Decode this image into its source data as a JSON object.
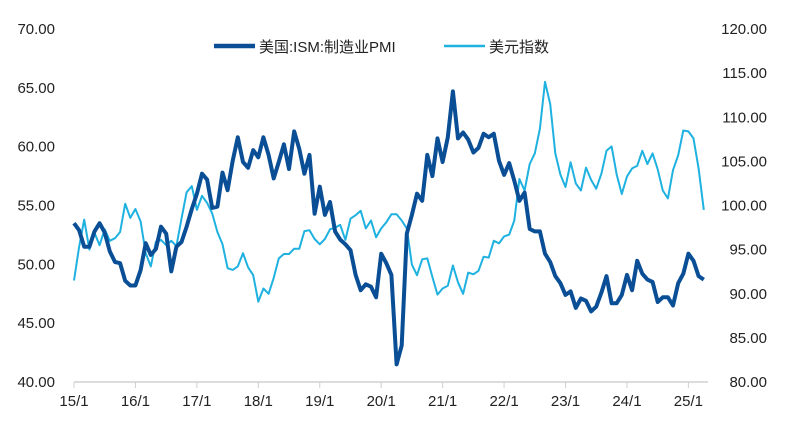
{
  "chart_data": {
    "type": "line",
    "title": "",
    "legend": {
      "placement": "top-center"
    },
    "grid": false,
    "x_tick_labels": [
      "15/1",
      "16/1",
      "17/1",
      "18/1",
      "19/1",
      "20/1",
      "21/1",
      "22/1",
      "23/1",
      "24/1",
      "25/1"
    ],
    "x_start": "2015-01",
    "x_end": "2025-04",
    "left_axis": {
      "ylim": [
        40,
        70
      ],
      "ticks": [
        "40.00",
        "45.00",
        "50.00",
        "55.00",
        "60.00",
        "65.00",
        "70.00"
      ]
    },
    "right_axis": {
      "ylim": [
        80,
        120
      ],
      "ticks": [
        "80.00",
        "85.00",
        "90.00",
        "95.00",
        "100.00",
        "105.00",
        "110.00",
        "115.00",
        "120.00"
      ]
    },
    "series": [
      {
        "name": "美国:ISM:制造业PMI",
        "axis": "left",
        "color": "#0a4f96",
        "values": [
          53.5,
          52.9,
          51.5,
          51.5,
          52.8,
          53.5,
          52.7,
          51.1,
          50.2,
          50.1,
          48.6,
          48.2,
          48.2,
          49.5,
          51.8,
          50.8,
          51.3,
          53.2,
          52.6,
          49.4,
          51.5,
          51.9,
          53.2,
          54.7,
          56.0,
          57.7,
          57.2,
          54.8,
          54.9,
          57.8,
          56.3,
          58.8,
          60.8,
          58.7,
          58.2,
          59.7,
          59.1,
          60.8,
          59.3,
          57.3,
          58.7,
          60.2,
          58.1,
          61.3,
          59.8,
          57.7,
          59.3,
          54.3,
          56.6,
          54.2,
          55.3,
          52.8,
          52.1,
          51.7,
          51.2,
          49.1,
          47.8,
          48.3,
          48.1,
          47.2,
          50.9,
          50.1,
          49.1,
          41.5,
          43.1,
          52.6,
          54.2,
          56.0,
          55.4,
          59.3,
          57.5,
          60.7,
          58.7,
          60.8,
          64.7,
          60.7,
          61.2,
          60.6,
          59.5,
          59.9,
          61.1,
          60.8,
          61.1,
          58.8,
          57.6,
          58.6,
          57.1,
          55.4,
          56.1,
          53.0,
          52.8,
          52.8,
          50.9,
          50.2,
          49.0,
          48.4,
          47.4,
          47.7,
          46.3,
          47.1,
          46.9,
          46.0,
          46.4,
          47.6,
          49.0,
          46.7,
          46.7,
          47.4,
          49.1,
          47.8,
          50.3,
          49.2,
          48.7,
          48.5,
          46.8,
          47.2,
          47.2,
          46.5,
          48.4,
          49.2,
          50.9,
          50.3,
          49.0,
          48.7
        ]
      },
      {
        "name": "美元指数",
        "axis": "right",
        "color": "#1fb1e0",
        "values": [
          91.5,
          95.3,
          98.4,
          95.0,
          96.9,
          95.5,
          97.3,
          96.0,
          96.3,
          97.0,
          100.2,
          98.6,
          99.6,
          98.2,
          94.6,
          93.1,
          95.9,
          96.1,
          95.5,
          96.0,
          95.4,
          98.5,
          101.5,
          102.2,
          99.5,
          101.1,
          100.3,
          99.1,
          97.0,
          95.6,
          92.9,
          92.7,
          93.1,
          94.6,
          93.0,
          92.1,
          89.1,
          90.6,
          90.0,
          91.8,
          94.0,
          94.5,
          94.5,
          95.1,
          95.1,
          97.1,
          97.2,
          96.2,
          95.6,
          96.2,
          97.3,
          97.5,
          97.8,
          96.1,
          98.5,
          98.9,
          99.4,
          97.4,
          98.3,
          96.4,
          97.4,
          98.1,
          99.0,
          99.0,
          98.3,
          97.4,
          93.3,
          92.1,
          93.9,
          94.0,
          91.9,
          89.9,
          90.6,
          90.9,
          93.2,
          91.3,
          90.0,
          92.4,
          92.2,
          92.6,
          94.2,
          94.1,
          96.0,
          95.7,
          96.5,
          96.7,
          98.3,
          103.0,
          101.7,
          104.7,
          105.9,
          108.7,
          114.0,
          111.5,
          105.9,
          103.5,
          102.1,
          104.9,
          102.5,
          101.7,
          104.3,
          102.9,
          101.9,
          103.6,
          106.2,
          106.7,
          103.5,
          101.3,
          103.3,
          104.2,
          104.5,
          106.2,
          104.7,
          105.9,
          104.1,
          101.7,
          100.8,
          104.0,
          105.7,
          108.5,
          108.4,
          107.6,
          104.2,
          99.5
        ]
      }
    ]
  }
}
